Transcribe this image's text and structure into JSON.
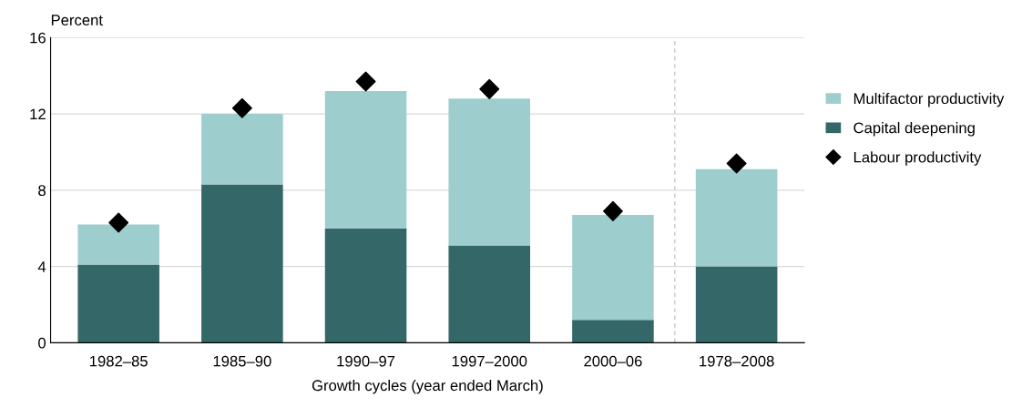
{
  "chart_data": {
    "type": "bar",
    "stacked": true,
    "xlabel": "Growth cycles (year ended March)",
    "ylabel": "Percent",
    "categories": [
      "1982–85",
      "1985–90",
      "1990–97",
      "1997–2000",
      "2000–06",
      "1978–2008"
    ],
    "series": [
      {
        "name": "Capital deepening",
        "color": "#346767",
        "values": [
          4.1,
          8.3,
          6.0,
          5.1,
          1.2,
          4.0
        ]
      },
      {
        "name": "Multifactor productivity",
        "color": "#9dcdcd",
        "values": [
          2.1,
          3.7,
          7.2,
          7.7,
          5.5,
          5.1
        ]
      },
      {
        "name": "Labour productivity",
        "type": "scatter",
        "marker": "diamond",
        "color": "#000000",
        "x": [
          "1982–85",
          "1985–90",
          "1990–97",
          "1997–2000",
          "2000–06",
          "1978–2008"
        ],
        "values": [
          6.3,
          12.3,
          13.7,
          13.3,
          6.9,
          9.4
        ]
      }
    ],
    "ylim": [
      0,
      16
    ],
    "yticks": [
      0,
      4,
      8,
      12,
      16
    ],
    "grid": "y",
    "legend": "right"
  }
}
